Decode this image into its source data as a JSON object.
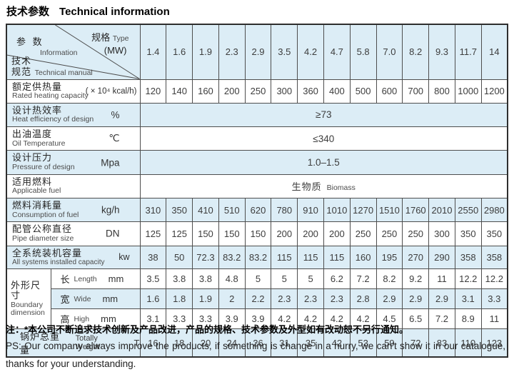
{
  "title": {
    "zh": "技术参数",
    "en": "Technical information"
  },
  "table": {
    "corner": {
      "param_zh": "参 数",
      "param_en": "Information",
      "spec_zh": "规格",
      "spec_en": "Type",
      "spec_mw": "(MW)",
      "tech_zh_1": "技术",
      "tech_zh_2": "规范",
      "tech_en": "Technical manual"
    },
    "columns": [
      "1.4",
      "1.6",
      "1.9",
      "2.3",
      "2.9",
      "3.5",
      "4.2",
      "4.7",
      "5.8",
      "7.0",
      "8.2",
      "9.3",
      "11.7",
      "14"
    ],
    "rows": {
      "rated": {
        "zh": "额定供热量",
        "en": "Rated heating capacity",
        "unit": "( × 10⁴ kcal/h)",
        "values": [
          "120",
          "140",
          "160",
          "200",
          "250",
          "300",
          "360",
          "400",
          "500",
          "600",
          "700",
          "800",
          "1000",
          "1200"
        ]
      },
      "efficiency": {
        "zh": "设计热效率",
        "en": "Heat efficiency of design",
        "unit": "%",
        "value": "≥73"
      },
      "oil_temp": {
        "zh": "出油温度",
        "en": "Oil Temperature",
        "unit": "℃",
        "value": "≤340"
      },
      "pressure": {
        "zh": "设计压力",
        "en": "Pressure of design",
        "unit": "Mpa",
        "value": "1.0–1.5"
      },
      "fuel": {
        "zh": "适用燃料",
        "en": "Applicable fuel",
        "value_zh": "生物质",
        "value_en": "Biomass"
      },
      "consumption": {
        "zh": "燃料消耗量",
        "en": "Consumption of fuel",
        "unit": "kg/h",
        "values": [
          "310",
          "350",
          "410",
          "510",
          "620",
          "780",
          "910",
          "1010",
          "1270",
          "1510",
          "1760",
          "2010",
          "2550",
          "2980"
        ]
      },
      "pipe": {
        "zh": "配管公称直径",
        "en": "Pipe diameter size",
        "unit": "DN",
        "values": [
          "125",
          "125",
          "150",
          "150",
          "150",
          "200",
          "200",
          "200",
          "250",
          "250",
          "250",
          "300",
          "350",
          "350"
        ]
      },
      "capacity": {
        "zh": "全系统装机容量",
        "en": "All systems installed capacity",
        "unit": "kw",
        "values": [
          "38",
          "50",
          "72.3",
          "83.2",
          "83.2",
          "115",
          "115",
          "115",
          "160",
          "195",
          "270",
          "290",
          "358",
          "358"
        ]
      },
      "dimension": {
        "zh": "外形尺寸",
        "en": "Boundary dimension",
        "length": {
          "zh": "长",
          "en": "Length",
          "unit": "mm",
          "values": [
            "3.5",
            "3.8",
            "3.8",
            "4.8",
            "5",
            "5",
            "5",
            "6.2",
            "7.2",
            "8.2",
            "9.2",
            "11",
            "12.2",
            "12.2"
          ]
        },
        "wide": {
          "zh": "宽",
          "en": "Wide",
          "unit": "mm",
          "values": [
            "1.6",
            "1.8",
            "1.9",
            "2",
            "2.2",
            "2.3",
            "2.3",
            "2.3",
            "2.8",
            "2.9",
            "2.9",
            "2.9",
            "3.1",
            "3.3"
          ]
        },
        "high": {
          "zh": "高",
          "en": "High",
          "unit": "mm",
          "values": [
            "3.1",
            "3.3",
            "3.3",
            "3.9",
            "3.9",
            "4.2",
            "4.2",
            "4.2",
            "4.2",
            "4.5",
            "6.5",
            "7.2",
            "8.9",
            "11"
          ]
        }
      },
      "weight": {
        "zh": "锅炉总重量",
        "en": "Totally Weight",
        "unit": "T",
        "values": [
          "16",
          "18",
          "20",
          "24",
          "26",
          "31",
          "35",
          "42",
          "53",
          "59",
          "72",
          "83",
          "110",
          "123"
        ]
      }
    }
  },
  "footer": {
    "note_zh": "注：*本公司不断追求技术创新及产品改进，产品的规格、技术参数及外型如有改动恕不另行通知。",
    "ps_en": "PS: Our company always improve the products, if something is change in a hurry, we can't show it in our catalogue, thanks for your understanding."
  }
}
